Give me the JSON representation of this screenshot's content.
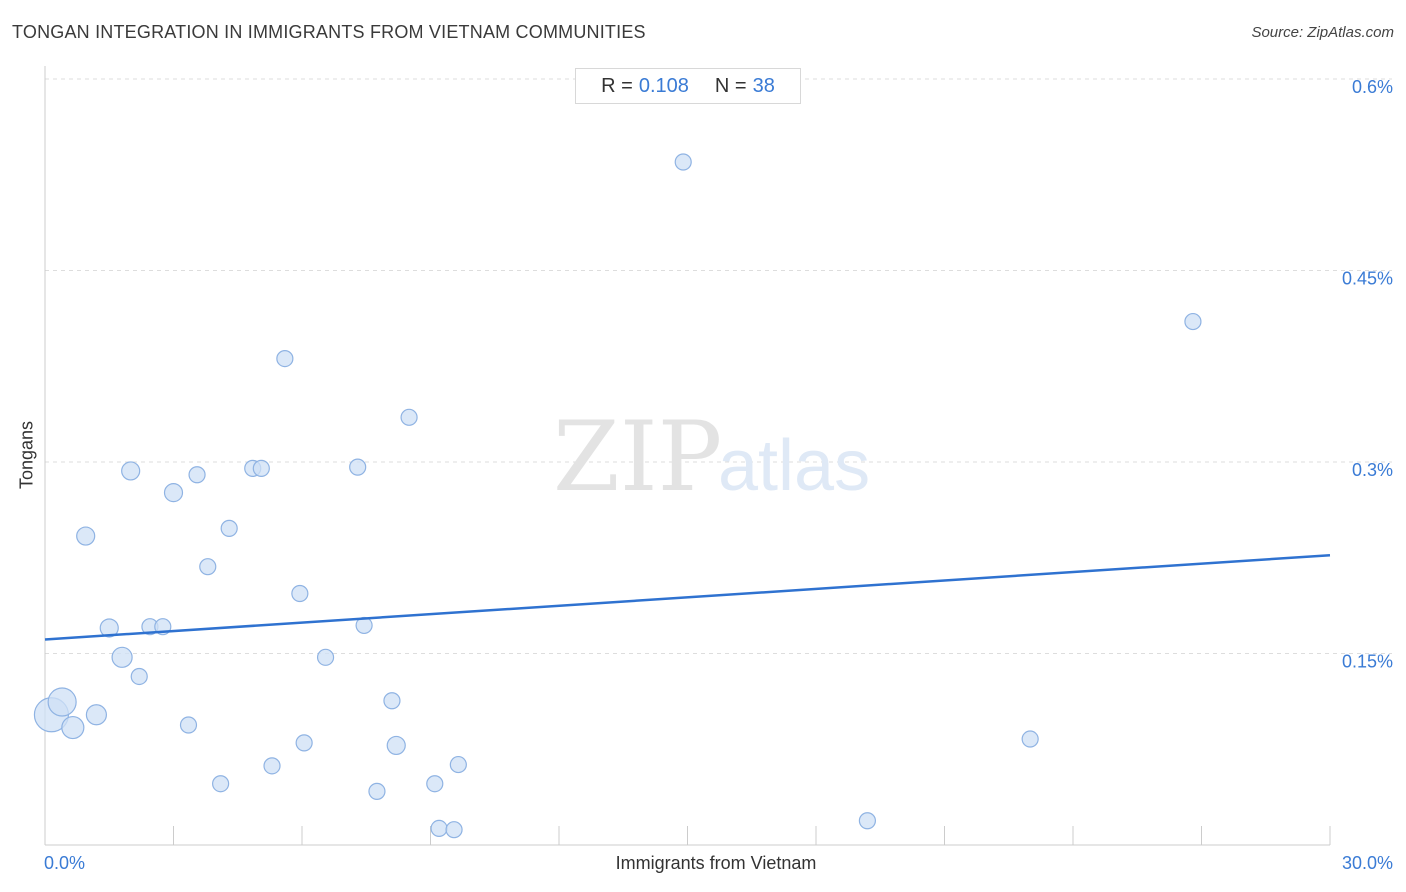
{
  "title": "TONGAN INTEGRATION IN IMMIGRANTS FROM VIETNAM COMMUNITIES",
  "source": "Source: ZipAtlas.com",
  "stats": {
    "r_label": "R =",
    "r_value": "0.108",
    "n_label": "N =",
    "n_value": "38"
  },
  "watermark": {
    "zip": "ZIP",
    "atlas": "atlas"
  },
  "colors": {
    "accent": "#3a7bd5",
    "point_fill": "#cfe0f6",
    "point_stroke": "#8fb3e3",
    "trend": "#2f72d0",
    "grid": "#dddddd"
  },
  "chart_data": {
    "type": "scatter",
    "title": "TONGAN INTEGRATION IN IMMIGRANTS FROM VIETNAM COMMUNITIES",
    "xlabel": "Immigrants from Vietnam",
    "ylabel": "Tongans",
    "xlim": [
      0,
      30
    ],
    "ylim": [
      0,
      0.6
    ],
    "x_tick_labels": [
      {
        "value": 0,
        "label": "0.0%"
      },
      {
        "value": 30,
        "label": "30.0%"
      }
    ],
    "y_tick_labels": [
      {
        "value": 0.15,
        "label": "0.15%"
      },
      {
        "value": 0.3,
        "label": "0.3%"
      },
      {
        "value": 0.45,
        "label": "0.45%"
      },
      {
        "value": 0.6,
        "label": "0.6%"
      }
    ],
    "grid_y": true,
    "trendline": {
      "x": [
        0,
        30
      ],
      "y": [
        0.161,
        0.227
      ]
    },
    "points": [
      {
        "x": 0.15,
        "y": 0.102,
        "r": 17
      },
      {
        "x": 0.4,
        "y": 0.112,
        "r": 14
      },
      {
        "x": 0.65,
        "y": 0.092,
        "r": 11
      },
      {
        "x": 0.95,
        "y": 0.242,
        "r": 9
      },
      {
        "x": 1.2,
        "y": 0.102,
        "r": 10
      },
      {
        "x": 1.5,
        "y": 0.17,
        "r": 9
      },
      {
        "x": 1.8,
        "y": 0.147,
        "r": 10
      },
      {
        "x": 2.0,
        "y": 0.293,
        "r": 9
      },
      {
        "x": 2.2,
        "y": 0.132,
        "r": 8
      },
      {
        "x": 2.45,
        "y": 0.171,
        "r": 8
      },
      {
        "x": 2.75,
        "y": 0.171,
        "r": 8
      },
      {
        "x": 3.0,
        "y": 0.276,
        "r": 9
      },
      {
        "x": 3.35,
        "y": 0.094,
        "r": 8
      },
      {
        "x": 3.55,
        "y": 0.29,
        "r": 8
      },
      {
        "x": 3.8,
        "y": 0.218,
        "r": 8
      },
      {
        "x": 4.1,
        "y": 0.048,
        "r": 8
      },
      {
        "x": 4.3,
        "y": 0.248,
        "r": 8
      },
      {
        "x": 4.85,
        "y": 0.295,
        "r": 8
      },
      {
        "x": 5.05,
        "y": 0.295,
        "r": 8
      },
      {
        "x": 5.3,
        "y": 0.062,
        "r": 8
      },
      {
        "x": 5.6,
        "y": 0.381,
        "r": 8
      },
      {
        "x": 5.95,
        "y": 0.197,
        "r": 8
      },
      {
        "x": 6.05,
        "y": 0.08,
        "r": 8
      },
      {
        "x": 6.55,
        "y": 0.147,
        "r": 8
      },
      {
        "x": 7.3,
        "y": 0.296,
        "r": 8
      },
      {
        "x": 7.45,
        "y": 0.172,
        "r": 8
      },
      {
        "x": 7.75,
        "y": 0.042,
        "r": 8
      },
      {
        "x": 8.1,
        "y": 0.113,
        "r": 8
      },
      {
        "x": 8.2,
        "y": 0.078,
        "r": 9
      },
      {
        "x": 8.5,
        "y": 0.335,
        "r": 8
      },
      {
        "x": 9.1,
        "y": 0.048,
        "r": 8
      },
      {
        "x": 9.2,
        "y": 0.013,
        "r": 8
      },
      {
        "x": 9.55,
        "y": 0.012,
        "r": 8
      },
      {
        "x": 9.65,
        "y": 0.063,
        "r": 8
      },
      {
        "x": 14.9,
        "y": 0.535,
        "r": 8
      },
      {
        "x": 19.2,
        "y": 0.019,
        "r": 8
      },
      {
        "x": 23.0,
        "y": 0.083,
        "r": 8
      },
      {
        "x": 26.8,
        "y": 0.41,
        "r": 8
      }
    ]
  }
}
